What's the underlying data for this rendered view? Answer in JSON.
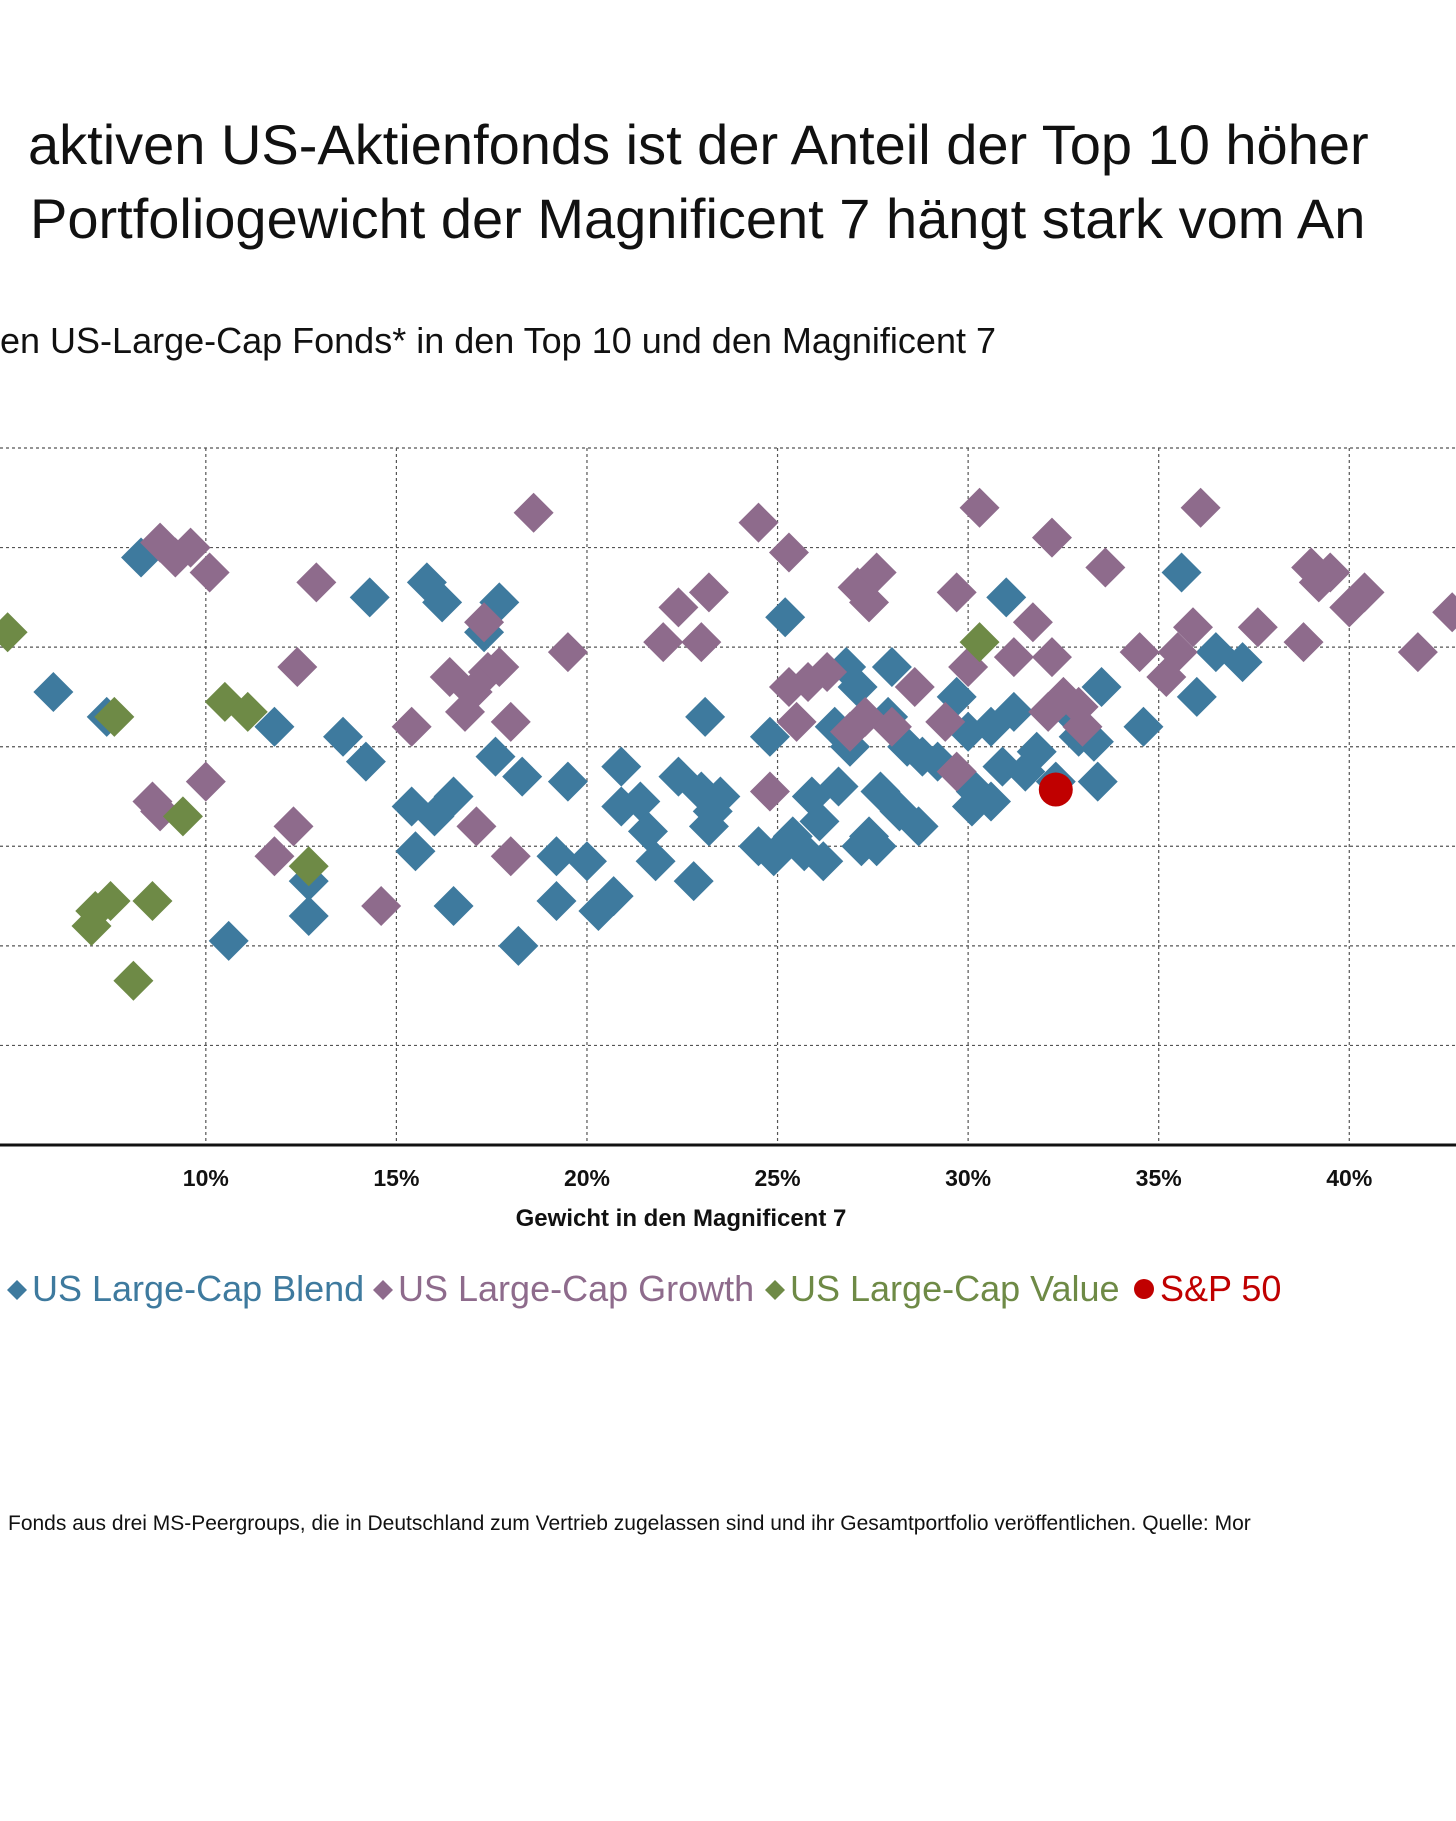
{
  "title_lines": [
    "aktiven US-Aktienfonds ist der Anteil der Top 10 höher",
    "Portfoliogewicht der Magnificent 7 hängt stark vom An"
  ],
  "subtitle": "en US-Large-Cap Fonds* in den Top 10 und den Magnificent 7",
  "footnote": "Fonds aus drei MS-Peergroups, die in Deutschland zum Vertrieb zugelassen sind und ihr Gesamtportfolio veröffentlichen. Quelle: Mor",
  "legend": [
    {
      "label": "US Large-Cap Blend",
      "color": "#3E7A9E",
      "marker": "diamond"
    },
    {
      "label": "US Large-Cap Growth",
      "color": "#8E6B8C",
      "marker": "diamond"
    },
    {
      "label": "US Large-Cap Value",
      "color": "#6E8A46",
      "marker": "diamond"
    },
    {
      "label": "S&P 50",
      "color": "#C00000",
      "marker": "circle"
    }
  ],
  "chart_data": {
    "type": "scatter",
    "xlabel": "Gewicht in den Magnificent 7",
    "x_ticks": [
      "10%",
      "15%",
      "20%",
      "25%",
      "30%",
      "35%",
      "40%"
    ],
    "xlim": [
      4.6,
      42.8
    ],
    "ylim": [
      0,
      7
    ],
    "grid": true,
    "series": [
      {
        "name": "US Large-Cap Blend",
        "color": "#3E7A9E",
        "points": [
          [
            8.3,
            5.9
          ],
          [
            6.0,
            4.55
          ],
          [
            7.4,
            4.3
          ],
          [
            11.8,
            4.2
          ],
          [
            13.6,
            4.1
          ],
          [
            14.2,
            3.85
          ],
          [
            14.3,
            5.5
          ],
          [
            15.8,
            5.65
          ],
          [
            16.2,
            5.45
          ],
          [
            17.7,
            5.45
          ],
          [
            17.3,
            5.15
          ],
          [
            15.4,
            3.4
          ],
          [
            16.0,
            3.3
          ],
          [
            16.5,
            3.5
          ],
          [
            17.6,
            3.9
          ],
          [
            18.3,
            3.7
          ],
          [
            19.5,
            3.65
          ],
          [
            15.5,
            2.95
          ],
          [
            16.5,
            2.4
          ],
          [
            19.2,
            2.9
          ],
          [
            19.2,
            2.45
          ],
          [
            18.2,
            2.0
          ],
          [
            10.6,
            2.05
          ],
          [
            12.7,
            2.65
          ],
          [
            12.7,
            2.3
          ],
          [
            20.0,
            2.85
          ],
          [
            20.3,
            2.35
          ],
          [
            20.7,
            2.5
          ],
          [
            20.9,
            3.8
          ],
          [
            20.9,
            3.4
          ],
          [
            21.4,
            3.45
          ],
          [
            21.8,
            2.85
          ],
          [
            21.6,
            3.15
          ],
          [
            22.4,
            3.7
          ],
          [
            22.8,
            2.65
          ],
          [
            23.0,
            3.55
          ],
          [
            23.3,
            3.35
          ],
          [
            23.2,
            3.2
          ],
          [
            23.5,
            3.5
          ],
          [
            23.1,
            4.3
          ],
          [
            24.5,
            3.0
          ],
          [
            24.8,
            4.1
          ],
          [
            25.2,
            5.3
          ],
          [
            24.9,
            2.9
          ],
          [
            25.4,
            3.1
          ],
          [
            25.7,
            2.95
          ],
          [
            25.9,
            3.5
          ],
          [
            26.1,
            3.25
          ],
          [
            26.2,
            2.85
          ],
          [
            26.6,
            3.6
          ],
          [
            26.5,
            4.2
          ],
          [
            26.9,
            4.0
          ],
          [
            26.8,
            4.8
          ],
          [
            27.1,
            4.6
          ],
          [
            27.2,
            3.0
          ],
          [
            27.4,
            3.1
          ],
          [
            27.6,
            3.0
          ],
          [
            27.7,
            3.55
          ],
          [
            28.0,
            4.8
          ],
          [
            27.9,
            4.3
          ],
          [
            28.2,
            3.35
          ],
          [
            28.7,
            3.2
          ],
          [
            28.4,
            4.0
          ],
          [
            28.8,
            3.9
          ],
          [
            29.2,
            3.85
          ],
          [
            29.7,
            4.5
          ],
          [
            30.0,
            4.15
          ],
          [
            30.1,
            3.4
          ],
          [
            30.2,
            3.55
          ],
          [
            30.6,
            3.45
          ],
          [
            30.6,
            4.2
          ],
          [
            30.9,
            3.8
          ],
          [
            31.0,
            5.5
          ],
          [
            31.2,
            4.35
          ],
          [
            31.5,
            3.75
          ],
          [
            31.8,
            3.95
          ],
          [
            32.3,
            3.65
          ],
          [
            32.5,
            4.4
          ],
          [
            32.9,
            4.1
          ],
          [
            33.4,
            3.65
          ],
          [
            33.3,
            4.05
          ],
          [
            33.5,
            4.6
          ],
          [
            34.6,
            4.2
          ],
          [
            35.6,
            5.75
          ],
          [
            36.0,
            4.5
          ],
          [
            36.5,
            4.95
          ],
          [
            37.2,
            4.85
          ]
        ]
      },
      {
        "name": "US Large-Cap Growth",
        "color": "#8E6B8C",
        "points": [
          [
            8.8,
            6.05
          ],
          [
            9.2,
            5.9
          ],
          [
            9.6,
            6.0
          ],
          [
            10.1,
            5.75
          ],
          [
            10.0,
            3.65
          ],
          [
            8.6,
            3.45
          ],
          [
            8.8,
            3.35
          ],
          [
            12.4,
            4.8
          ],
          [
            12.9,
            5.65
          ],
          [
            12.3,
            3.2
          ],
          [
            11.8,
            2.9
          ],
          [
            14.6,
            2.4
          ],
          [
            15.4,
            4.2
          ],
          [
            16.4,
            4.7
          ],
          [
            16.8,
            4.35
          ],
          [
            17.0,
            4.55
          ],
          [
            17.4,
            4.75
          ],
          [
            17.7,
            4.8
          ],
          [
            17.3,
            5.25
          ],
          [
            17.1,
            3.2
          ],
          [
            18.0,
            4.25
          ],
          [
            18.6,
            6.35
          ],
          [
            18.0,
            2.9
          ],
          [
            19.5,
            4.95
          ],
          [
            22.0,
            5.05
          ],
          [
            22.4,
            5.4
          ],
          [
            23.0,
            5.05
          ],
          [
            23.2,
            5.55
          ],
          [
            24.5,
            6.25
          ],
          [
            24.8,
            3.55
          ],
          [
            25.3,
            5.95
          ],
          [
            25.3,
            4.6
          ],
          [
            25.8,
            4.65
          ],
          [
            25.5,
            4.25
          ],
          [
            26.3,
            4.75
          ],
          [
            26.9,
            4.15
          ],
          [
            27.1,
            5.6
          ],
          [
            27.3,
            4.3
          ],
          [
            27.6,
            5.75
          ],
          [
            27.4,
            5.45
          ],
          [
            28.0,
            4.2
          ],
          [
            28.6,
            4.6
          ],
          [
            29.7,
            3.75
          ],
          [
            29.7,
            5.55
          ],
          [
            29.4,
            4.25
          ],
          [
            30.0,
            4.8
          ],
          [
            30.3,
            6.4
          ],
          [
            31.2,
            4.9
          ],
          [
            31.7,
            5.25
          ],
          [
            32.2,
            6.1
          ],
          [
            32.2,
            4.9
          ],
          [
            32.1,
            4.35
          ],
          [
            32.5,
            4.5
          ],
          [
            32.9,
            4.4
          ],
          [
            33.0,
            4.2
          ],
          [
            33.6,
            5.8
          ],
          [
            34.5,
            4.95
          ],
          [
            35.2,
            4.7
          ],
          [
            35.5,
            4.95
          ],
          [
            35.9,
            5.2
          ],
          [
            36.1,
            6.4
          ],
          [
            37.6,
            5.2
          ],
          [
            38.8,
            5.05
          ],
          [
            39.0,
            5.8
          ],
          [
            39.5,
            5.75
          ],
          [
            39.2,
            5.65
          ],
          [
            40.4,
            5.55
          ],
          [
            40.0,
            5.4
          ],
          [
            41.8,
            4.95
          ],
          [
            42.7,
            5.35
          ]
        ]
      },
      {
        "name": "US Large-Cap Value",
        "color": "#6E8A46",
        "points": [
          [
            4.8,
            5.15
          ],
          [
            7.6,
            4.3
          ],
          [
            10.5,
            4.45
          ],
          [
            11.1,
            4.35
          ],
          [
            9.4,
            3.3
          ],
          [
            12.7,
            2.8
          ],
          [
            7.1,
            2.35
          ],
          [
            7.5,
            2.45
          ],
          [
            7.0,
            2.2
          ],
          [
            8.6,
            2.45
          ],
          [
            8.1,
            1.65
          ],
          [
            30.3,
            5.05
          ]
        ]
      },
      {
        "name": "S&P 50",
        "color": "#C00000",
        "points": [
          [
            32.3,
            3.57
          ]
        ]
      }
    ]
  }
}
